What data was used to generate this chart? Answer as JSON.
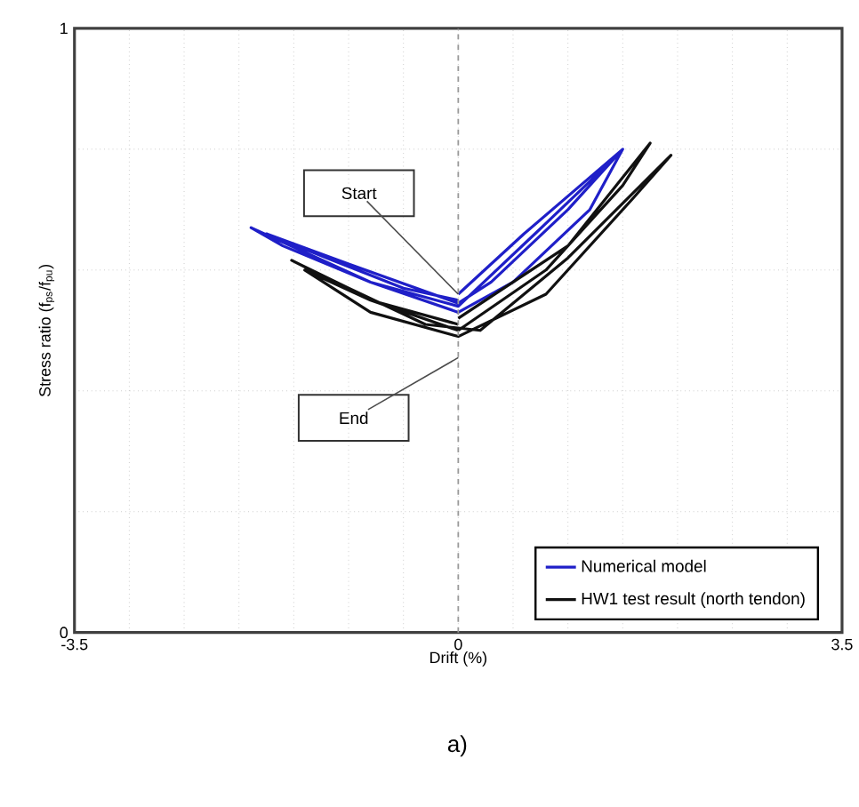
{
  "chart_data": {
    "type": "line",
    "xlabel": "Drift (%)",
    "ylabel": "Stress ratio (f$_{ps}$/f$_{pu}$)",
    "xlim": [
      -3.5,
      3.5
    ],
    "ylim": [
      0,
      1
    ],
    "xticks": [
      -3.5,
      {
        "value": -3,
        "label": null
      },
      {
        "value": -2.5,
        "label": null
      },
      {
        "value": -2,
        "label": null
      },
      {
        "value": -1.5,
        "label": null
      },
      {
        "value": -1,
        "label": null
      },
      {
        "value": -0.5,
        "label": null
      },
      0,
      {
        "value": 0.5,
        "label": null
      },
      {
        "value": 1,
        "label": null
      },
      {
        "value": 1.5,
        "label": null
      },
      {
        "value": 2,
        "label": null
      },
      {
        "value": 2.5,
        "label": null
      },
      {
        "value": 3,
        "label": null
      },
      3.5
    ],
    "yticks": [
      0,
      {
        "value": 0.2,
        "label": null
      },
      {
        "value": 0.4,
        "label": null
      },
      {
        "value": 0.6,
        "label": null
      },
      {
        "value": 0.8,
        "label": null
      },
      1
    ],
    "grid": true,
    "legend": "bottom right",
    "ref_lines": [
      {
        "axis": "x",
        "value": 0,
        "color": "#999999",
        "line_style": "dashed"
      }
    ],
    "series": [
      {
        "name": "Numerical model",
        "color": "#1f1fc8",
        "x": [
          0,
          0.6,
          1.5,
          1.2,
          0.5,
          0,
          -0.8,
          -1.89,
          -1.6,
          -0.8,
          0,
          0.7,
          1.45,
          1.0,
          0.3,
          0,
          -1.0,
          -1.75,
          -1.2,
          -0.5,
          0
        ],
        "values": [
          0.56,
          0.66,
          0.8,
          0.7,
          0.58,
          0.53,
          0.58,
          0.67,
          0.64,
          0.58,
          0.54,
          0.66,
          0.79,
          0.7,
          0.58,
          0.545,
          0.61,
          0.66,
          0.62,
          0.57,
          0.55
        ]
      },
      {
        "name": "HW1 test result (north tendon)",
        "color": "#111111",
        "x": [
          0,
          1.0,
          1.75,
          1.5,
          0.8,
          0,
          -0.8,
          -1.52,
          -1.0,
          -0.3,
          0.2,
          1.0,
          1.94,
          1.6,
          0.8,
          0,
          -0.8,
          -1.4,
          -0.8,
          0
        ],
        "values": [
          0.52,
          0.64,
          0.81,
          0.74,
          0.6,
          0.5,
          0.55,
          0.616,
          0.57,
          0.51,
          0.5,
          0.62,
          0.79,
          0.72,
          0.56,
          0.49,
          0.53,
          0.6,
          0.55,
          0.51
        ]
      }
    ],
    "annotations": [
      {
        "text": "Start",
        "x": 0,
        "y": 0.56
      },
      {
        "text": "End",
        "x": 0,
        "y": 0.455
      },
      "a)"
    ]
  }
}
